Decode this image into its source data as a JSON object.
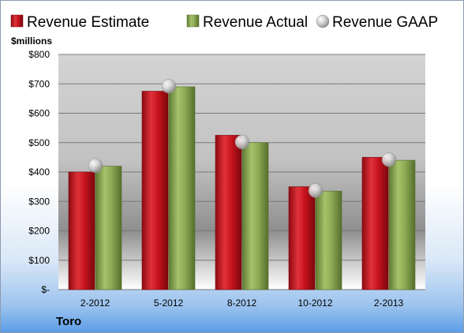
{
  "chart_data": {
    "type": "bar",
    "categories": [
      "2-2012",
      "5-2012",
      "8-2012",
      "10-2012",
      "2-2013"
    ],
    "series": [
      {
        "name": "Revenue Estimate",
        "type": "bar",
        "values": [
          400,
          675,
          525,
          350,
          450
        ]
      },
      {
        "name": "Revenue Actual",
        "type": "bar",
        "values": [
          420,
          690,
          500,
          335,
          440
        ]
      },
      {
        "name": "Revenue GAAP",
        "type": "scatter",
        "values": [
          422,
          692,
          502,
          337,
          442
        ]
      }
    ],
    "ylabel": "$millions",
    "ylim": [
      0,
      800
    ],
    "yticks": [
      0,
      100,
      200,
      300,
      400,
      500,
      600,
      700,
      800
    ],
    "ytick_labels": [
      "$-",
      "$100",
      "$200",
      "$300",
      "$400",
      "$500",
      "$600",
      "$700",
      "$800"
    ],
    "grid": true,
    "legend_position": "top",
    "colors": {
      "estimate": "#c8141e",
      "actual": "#8fac56",
      "gaap": "#c8c8c8"
    }
  },
  "company": "Toro"
}
